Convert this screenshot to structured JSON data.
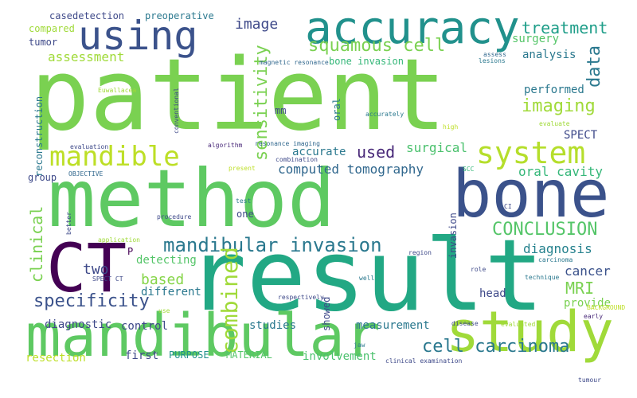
{
  "words": [
    {
      "text": "patient",
      "color": "#7ad151",
      "orientation": "horizontal"
    },
    {
      "text": "result",
      "color": "#22a884",
      "orientation": "horizontal"
    },
    {
      "text": "method",
      "color": "#5ec962",
      "orientation": "horizontal"
    },
    {
      "text": "mandibular",
      "color": "#5ec962",
      "orientation": "horizontal"
    },
    {
      "text": "bone",
      "color": "#3b528b",
      "orientation": "horizontal"
    },
    {
      "text": "study",
      "color": "#a0da39",
      "orientation": "horizontal"
    },
    {
      "text": "accuracy",
      "color": "#21918c",
      "orientation": "horizontal"
    },
    {
      "text": "CT",
      "color": "#440154",
      "orientation": "horizontal"
    },
    {
      "text": "using",
      "color": "#3b528b",
      "orientation": "horizontal"
    },
    {
      "text": "system",
      "color": "#b5de2b",
      "orientation": "horizontal"
    },
    {
      "text": "mandible",
      "color": "#bddf26",
      "orientation": "horizontal"
    },
    {
      "text": "mandibular invasion",
      "color": "#2a788e",
      "orientation": "horizontal"
    },
    {
      "text": "specificity",
      "color": "#3b528b",
      "orientation": "horizontal"
    },
    {
      "text": "cell carcinoma",
      "color": "#2a788e",
      "orientation": "horizontal"
    },
    {
      "text": "squamous cell",
      "color": "#7ad151",
      "orientation": "horizontal"
    },
    {
      "text": "CONCLUSION",
      "color": "#54c568",
      "orientation": "horizontal"
    },
    {
      "text": "imaging",
      "color": "#a0da39",
      "orientation": "horizontal"
    },
    {
      "text": "treatment",
      "color": "#1f9e89",
      "orientation": "horizontal"
    },
    {
      "text": "combined",
      "color": "#a0da39",
      "orientation": "vertical"
    },
    {
      "text": "sensitivity",
      "color": "#7ad151",
      "orientation": "vertical"
    },
    {
      "text": "clinical",
      "color": "#7ad151",
      "orientation": "vertical"
    },
    {
      "text": "MRI",
      "color": "#7ad151",
      "orientation": "horizontal"
    },
    {
      "text": "used",
      "color": "#482878",
      "orientation": "horizontal"
    },
    {
      "text": "assessment",
      "color": "#a0da39",
      "orientation": "horizontal"
    },
    {
      "text": "image",
      "color": "#3e4989",
      "orientation": "horizontal"
    },
    {
      "text": "data",
      "color": "#2a788e",
      "orientation": "vertical"
    },
    {
      "text": "based",
      "color": "#86d549",
      "orientation": "horizontal"
    },
    {
      "text": "two",
      "color": "#3e4989",
      "orientation": "horizontal"
    },
    {
      "text": "computed tomography",
      "color": "#31688e",
      "orientation": "horizontal"
    },
    {
      "text": "diagnosis",
      "color": "#26828e",
      "orientation": "horizontal"
    },
    {
      "text": "cancer",
      "color": "#3b528b",
      "orientation": "horizontal"
    },
    {
      "text": "surgical",
      "color": "#4ac16d",
      "orientation": "horizontal"
    },
    {
      "text": "oral cavity",
      "color": "#35b779",
      "orientation": "horizontal"
    },
    {
      "text": "surgery",
      "color": "#54c568",
      "orientation": "horizontal"
    },
    {
      "text": "analysis",
      "color": "#2a788e",
      "orientation": "horizontal"
    },
    {
      "text": "performed",
      "color": "#2a788e",
      "orientation": "horizontal"
    },
    {
      "text": "SPECT",
      "color": "#3e4989",
      "orientation": "horizontal"
    },
    {
      "text": "accurate",
      "color": "#2a788e",
      "orientation": "horizontal"
    },
    {
      "text": "different",
      "color": "#2a788e",
      "orientation": "horizontal"
    },
    {
      "text": "detecting",
      "color": "#54c568",
      "orientation": "horizontal"
    },
    {
      "text": "provide",
      "color": "#7ad151",
      "orientation": "horizontal"
    },
    {
      "text": "head",
      "color": "#3e4989",
      "orientation": "horizontal"
    },
    {
      "text": "measurement",
      "color": "#2a788e",
      "orientation": "horizontal"
    },
    {
      "text": "diagnostic",
      "color": "#3e4989",
      "orientation": "horizontal"
    },
    {
      "text": "control",
      "color": "#3e4989",
      "orientation": "horizontal"
    },
    {
      "text": "studies",
      "color": "#2a788e",
      "orientation": "horizontal"
    },
    {
      "text": "first",
      "color": "#3e4989",
      "orientation": "horizontal"
    },
    {
      "text": "resection",
      "color": "#bddf26",
      "orientation": "horizontal"
    },
    {
      "text": "PURPOSE",
      "color": "#21918c",
      "orientation": "horizontal"
    },
    {
      "text": "MATERIAL",
      "color": "#54c568",
      "orientation": "horizontal"
    },
    {
      "text": "involvement",
      "color": "#4ac16d",
      "orientation": "horizontal"
    },
    {
      "text": "case",
      "color": "#3e4989",
      "orientation": "horizontal"
    },
    {
      "text": "detection",
      "color": "#3e4989",
      "orientation": "horizontal"
    },
    {
      "text": "preoperative",
      "color": "#2a788e",
      "orientation": "horizontal"
    },
    {
      "text": "compared",
      "color": "#a0da39",
      "orientation": "horizontal"
    },
    {
      "text": "tumor",
      "color": "#3e4989",
      "orientation": "horizontal"
    },
    {
      "text": "bone invasion",
      "color": "#35b779",
      "orientation": "horizontal"
    },
    {
      "text": "reconstruction",
      "color": "#2a788e",
      "orientation": "vertical"
    },
    {
      "text": "mm",
      "color": "#3e4989",
      "orientation": "horizontal"
    },
    {
      "text": "oral",
      "color": "#2a788e",
      "orientation": "vertical"
    },
    {
      "text": "group",
      "color": "#3e4989",
      "orientation": "horizontal"
    },
    {
      "text": "one",
      "color": "#3e4989",
      "orientation": "horizontal"
    },
    {
      "text": "invasion",
      "color": "#3e4989",
      "orientation": "vertical"
    },
    {
      "text": "showed",
      "color": "#3e4989",
      "orientation": "vertical"
    },
    {
      "text": "magnetic resonance",
      "color": "#31688e",
      "orientation": "horizontal"
    },
    {
      "text": "assess",
      "color": "#31688e",
      "orientation": "horizontal"
    },
    {
      "text": "lesions",
      "color": "#2a788e",
      "orientation": "horizontal"
    },
    {
      "text": "Euwallacea",
      "color": "#a0da39",
      "orientation": "horizontal"
    },
    {
      "text": "conventional",
      "color": "#3e4989",
      "orientation": "vertical"
    },
    {
      "text": "accurately",
      "color": "#2a788e",
      "orientation": "horizontal"
    },
    {
      "text": "high",
      "color": "#bddf26",
      "orientation": "horizontal"
    },
    {
      "text": "evaluate",
      "color": "#a0da39",
      "orientation": "horizontal"
    },
    {
      "text": "evaluation",
      "color": "#3e4989",
      "orientation": "horizontal"
    },
    {
      "text": "algorithm",
      "color": "#482878",
      "orientation": "horizontal"
    },
    {
      "text": "resonance imaging",
      "color": "#31688e",
      "orientation": "horizontal"
    },
    {
      "text": "combination",
      "color": "#3e4989",
      "orientation": "horizontal"
    },
    {
      "text": "present",
      "color": "#bddf26",
      "orientation": "horizontal"
    },
    {
      "text": "SCC",
      "color": "#35b779",
      "orientation": "horizontal"
    },
    {
      "text": "OBJECTIVE",
      "color": "#31688e",
      "orientation": "horizontal"
    },
    {
      "text": "better",
      "color": "#3e4989",
      "orientation": "vertical"
    },
    {
      "text": "test",
      "color": "#2a788e",
      "orientation": "horizontal"
    },
    {
      "text": "CI",
      "color": "#3e4989",
      "orientation": "horizontal"
    },
    {
      "text": "procedure",
      "color": "#3e4989",
      "orientation": "horizontal"
    },
    {
      "text": "application",
      "color": "#a0da39",
      "orientation": "horizontal"
    },
    {
      "text": "P",
      "color": "#440154",
      "orientation": "horizontal"
    },
    {
      "text": "region",
      "color": "#3e4989",
      "orientation": "horizontal"
    },
    {
      "text": "carcinoma",
      "color": "#2a788e",
      "orientation": "horizontal"
    },
    {
      "text": "SPECT CT",
      "color": "#3e4989",
      "orientation": "horizontal"
    },
    {
      "text": "role",
      "color": "#3e4989",
      "orientation": "horizontal"
    },
    {
      "text": "technique",
      "color": "#2a788e",
      "orientation": "horizontal"
    },
    {
      "text": "well",
      "color": "#2a788e",
      "orientation": "horizontal"
    },
    {
      "text": "use",
      "color": "#a0da39",
      "orientation": "horizontal"
    },
    {
      "text": "respectively",
      "color": "#3e4989",
      "orientation": "horizontal"
    },
    {
      "text": "BACKGROUND",
      "color": "#bddf26",
      "orientation": "horizontal"
    },
    {
      "text": "early",
      "color": "#482878",
      "orientation": "horizontal"
    },
    {
      "text": "disease",
      "color": "#3e4989",
      "orientation": "horizontal"
    },
    {
      "text": "evaluated",
      "color": "#a0da39",
      "orientation": "horizontal"
    },
    {
      "text": "jaw",
      "color": "#2a788e",
      "orientation": "horizontal"
    },
    {
      "text": "clinical examination",
      "color": "#3e4989",
      "orientation": "horizontal"
    },
    {
      "text": "tumour",
      "color": "#3e4989",
      "orientation": "horizontal"
    }
  ]
}
